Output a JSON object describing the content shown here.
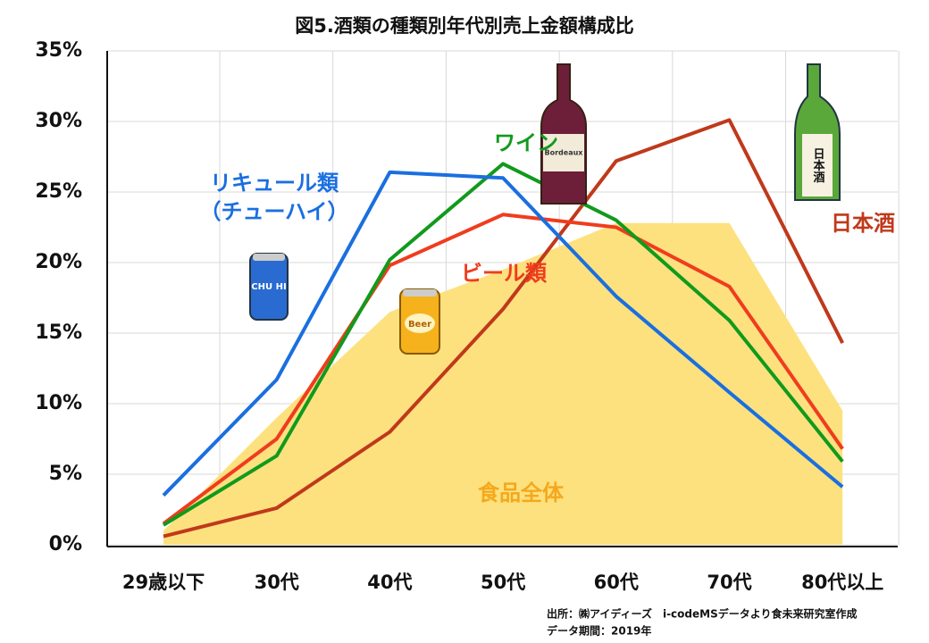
{
  "chart_data": {
    "type": "line",
    "title": "図5.酒類の種類別年代別売上金額構成比",
    "categories": [
      "29歳以下",
      "30代",
      "40代",
      "50代",
      "60代",
      "70代",
      "80代以上"
    ],
    "series": [
      {
        "name": "食品全体",
        "color": "#fde17f",
        "label_color": "#f5a81c",
        "style": "area",
        "values": [
          1.0,
          9.0,
          16.5,
          19.5,
          22.8,
          22.8,
          9.5
        ]
      },
      {
        "name": "日本酒",
        "color": "#c0391b",
        "style": "line",
        "values": [
          0.6,
          2.6,
          8.0,
          16.7,
          27.2,
          30.1,
          14.3
        ]
      },
      {
        "name": "ビール類",
        "color": "#f03c1e",
        "style": "line",
        "values": [
          1.5,
          7.5,
          19.8,
          23.4,
          22.5,
          18.3,
          6.8
        ]
      },
      {
        "name": "ワイン",
        "color": "#119a1c",
        "style": "line",
        "values": [
          1.4,
          6.3,
          20.2,
          27.0,
          23.0,
          15.9,
          5.9
        ]
      },
      {
        "name": "リキュール類（チューハイ）",
        "color": "#1a6fe0",
        "style": "line",
        "values": [
          3.5,
          11.7,
          26.4,
          26.0,
          17.6,
          10.8,
          4.1
        ]
      }
    ],
    "ylim": [
      0,
      35
    ],
    "yticks": [
      {
        "value": 0,
        "label": "0%"
      },
      {
        "value": 5,
        "label": "5%"
      },
      {
        "value": 10,
        "label": "10%"
      },
      {
        "value": 15,
        "label": "15%"
      },
      {
        "value": 20,
        "label": "20%"
      },
      {
        "value": 25,
        "label": "25%"
      },
      {
        "value": 30,
        "label": "30%"
      },
      {
        "value": 35,
        "label": "35%"
      }
    ],
    "grid": true,
    "illustration_texts": [
      "CHU HI",
      "Beer",
      "Bordeaux",
      "日本酒"
    ],
    "source": "出所：㈱アイディーズ　i-codeMSデータより食未来研究室作成",
    "period": "データ期間：2019年"
  }
}
